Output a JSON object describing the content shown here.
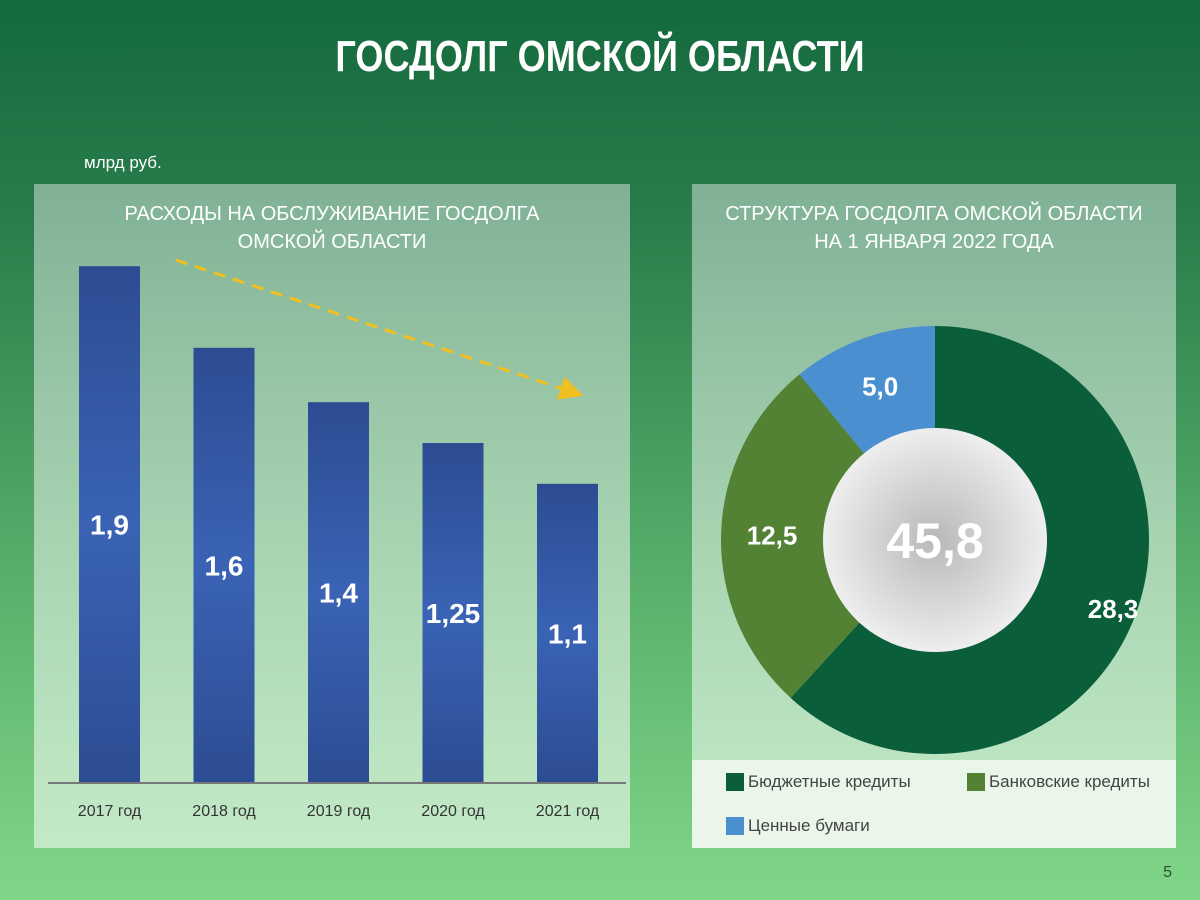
{
  "title": "ГОСДОЛГ ОМСКОЙ ОБЛАСТИ",
  "unit": "млрд руб.",
  "page_number": "5",
  "colors": {
    "bar": "#2f55a0",
    "trend": "#f0c020",
    "budget": "#0b5e3a",
    "bank": "#548235",
    "securities": "#4a8fd0"
  },
  "chart_data": [
    {
      "type": "bar",
      "title": "РАСХОДЫ НА ОБСЛУЖИВАНИЕ ГОСДОЛГА ОМСКОЙ ОБЛАСТИ",
      "title_lines": [
        "РАСХОДЫ НА ОБСЛУЖИВАНИЕ ГОСДОЛГА",
        "ОМСКОЙ ОБЛАСТИ"
      ],
      "categories": [
        "2017 год",
        "2018 год",
        "2019 год",
        "2020 год",
        "2021 год"
      ],
      "values": [
        1.9,
        1.6,
        1.4,
        1.25,
        1.1
      ],
      "labels": [
        "1,9",
        "1,6",
        "1,4",
        "1,25",
        "1,1"
      ],
      "ylabel": "млрд руб.",
      "trend": "decreasing (dashed arrow)"
    },
    {
      "type": "pie",
      "subtype": "donut",
      "title": "СТРУКТУРА ГОСДОЛГА ОМСКОЙ ОБЛАСТИ НА 1 ЯНВАРЯ 2022 ГОДА",
      "title_lines": [
        "СТРУКТУРА ГОСДОЛГА ОМСКОЙ ОБЛАСТИ",
        "НА 1 ЯНВАРЯ 2022 ГОДА"
      ],
      "total": 45.8,
      "total_label": "45,8",
      "slices": [
        {
          "name": "Бюджетные кредиты",
          "value": 28.3,
          "label": "28,3"
        },
        {
          "name": "Банковские кредиты",
          "value": 12.5,
          "label": "12,5"
        },
        {
          "name": "Ценные бумаги",
          "value": 5.0,
          "label": "5,0"
        }
      ],
      "legend": "bottom"
    }
  ]
}
